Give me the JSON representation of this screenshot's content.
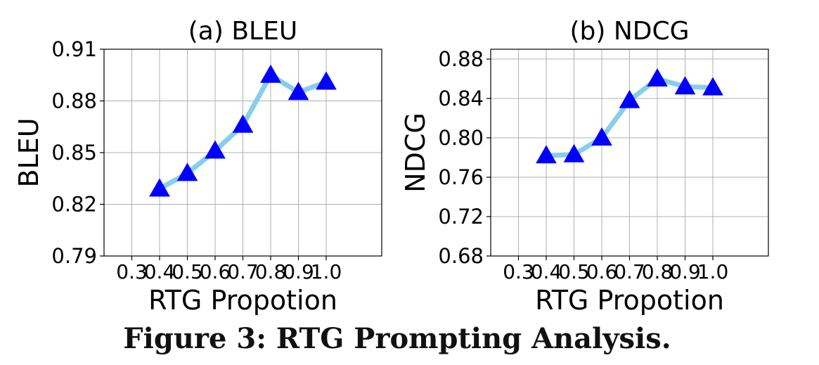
{
  "caption": "Figure 3: RTG Prompting Analysis.",
  "colors": {
    "line": "#87CEEB",
    "marker": "#0000FF",
    "grid": "#b0b0b0"
  },
  "chart_data": [
    {
      "type": "line",
      "title": "(a) BLEU",
      "xlabel": "RTG Propotion",
      "ylabel": "BLEU",
      "x": [
        0.3,
        0.4,
        0.5,
        0.6,
        0.7,
        0.8,
        0.9,
        1.0
      ],
      "xticklabels": [
        "0.3",
        "0.4",
        "0.5",
        "0.6",
        "0.7",
        "0.8",
        "0.9",
        "1.0"
      ],
      "xlim": [
        0.2,
        1.2
      ],
      "yticks": [
        0.79,
        0.82,
        0.85,
        0.88,
        0.91
      ],
      "yticklabels": [
        "0.79",
        "0.82",
        "0.85",
        "0.88",
        "0.91"
      ],
      "ylim": [
        0.79,
        0.91
      ],
      "grid": true,
      "series": [
        {
          "x": [
            0.4,
            0.5,
            0.6,
            0.7,
            0.8,
            0.9,
            1.0
          ],
          "values": [
            0.829,
            0.838,
            0.851,
            0.866,
            0.895,
            0.885,
            0.891
          ]
        }
      ]
    },
    {
      "type": "line",
      "title": "(b) NDCG",
      "xlabel": "RTG Propotion",
      "ylabel": "NDCG",
      "x": [
        0.3,
        0.4,
        0.5,
        0.6,
        0.7,
        0.8,
        0.9,
        1.0
      ],
      "xticklabels": [
        "0.3",
        "0.4",
        "0.5",
        "0.6",
        "0.7",
        "0.8",
        "0.9",
        "1.0"
      ],
      "xlim": [
        0.2,
        1.2
      ],
      "yticks": [
        0.68,
        0.72,
        0.76,
        0.8,
        0.84,
        0.88
      ],
      "yticklabels": [
        "0.68",
        "0.72",
        "0.76",
        "0.80",
        "0.84",
        "0.88"
      ],
      "ylim": [
        0.68,
        0.89
      ],
      "grid": true,
      "series": [
        {
          "x": [
            0.4,
            0.5,
            0.6,
            0.7,
            0.8,
            0.9,
            1.0
          ],
          "values": [
            0.782,
            0.783,
            0.8,
            0.838,
            0.86,
            0.852,
            0.851
          ]
        }
      ]
    }
  ]
}
